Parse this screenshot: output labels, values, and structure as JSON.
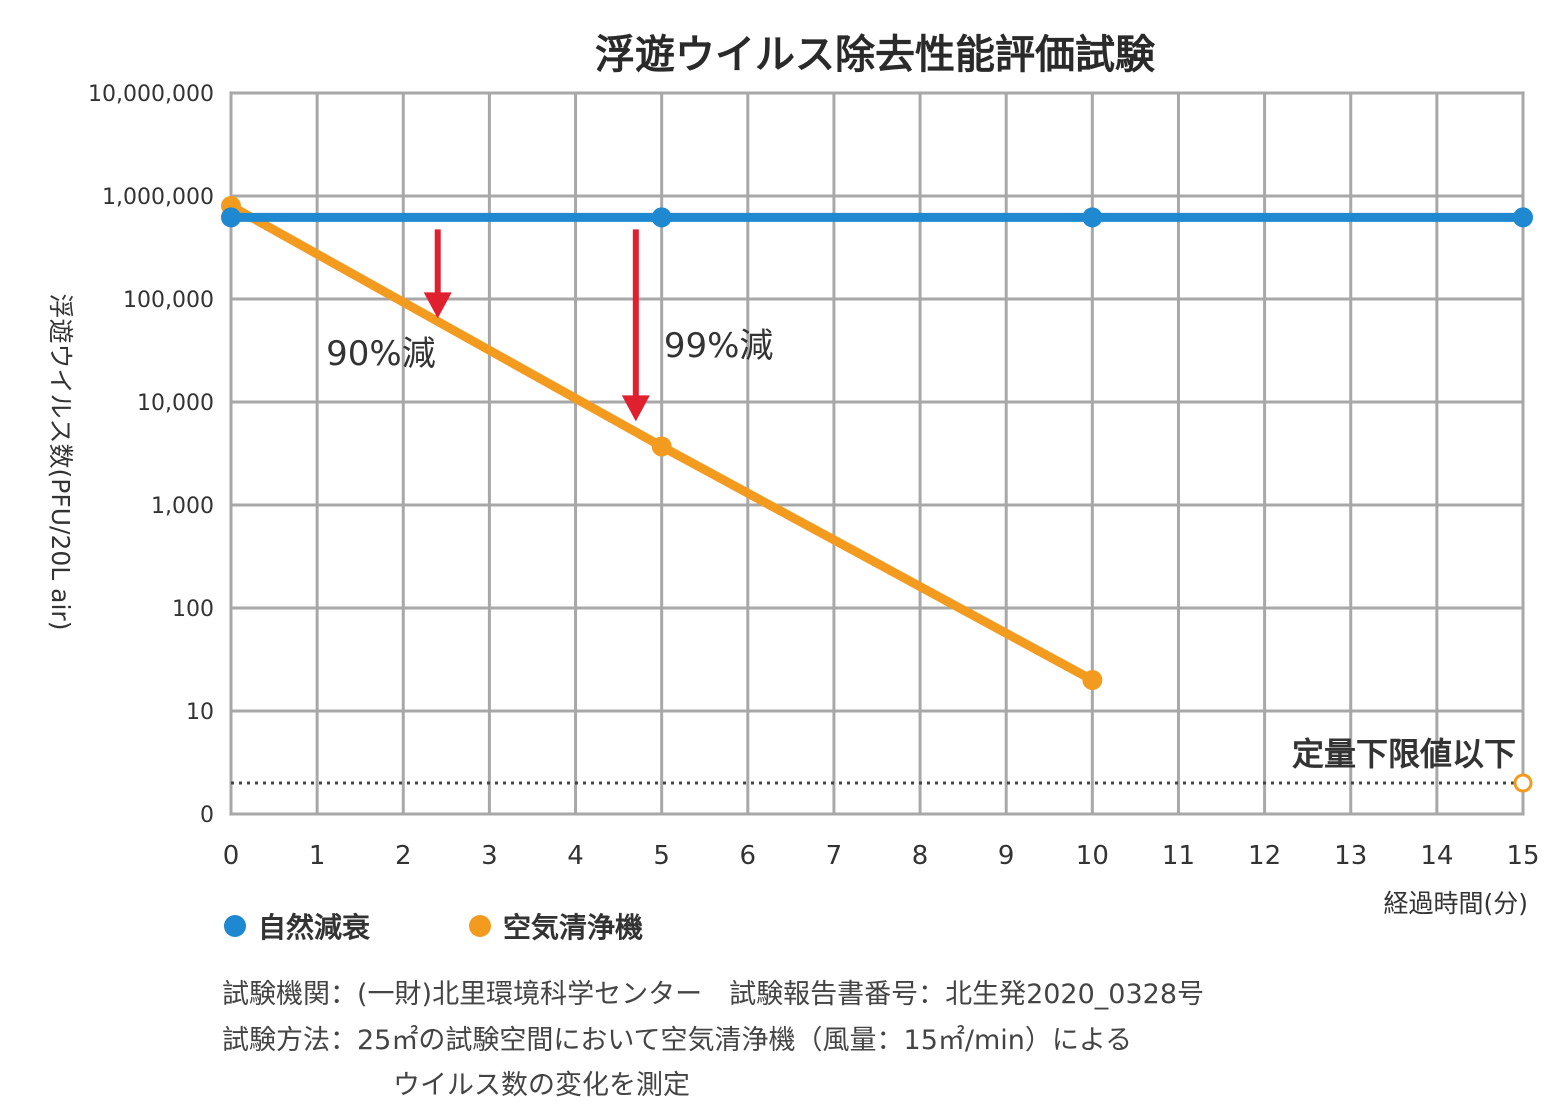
{
  "chart_data": {
    "type": "line",
    "title": "浮遊ウイルス除去性能評価試験",
    "xlabel": "経過時間(分)",
    "ylabel": "浮遊ウイルス数(PFU/20L air)",
    "yscale": "log",
    "x_ticks": [
      "0",
      "1",
      "2",
      "3",
      "4",
      "5",
      "6",
      "7",
      "8",
      "9",
      "10",
      "11",
      "12",
      "13",
      "14",
      "15"
    ],
    "y_ticks": [
      {
        "value": 1,
        "label": "0"
      },
      {
        "value": 10,
        "label": "10"
      },
      {
        "value": 100,
        "label": "100"
      },
      {
        "value": 1000,
        "label": "1,000"
      },
      {
        "value": 10000,
        "label": "10,000"
      },
      {
        "value": 100000,
        "label": "100,000"
      },
      {
        "value": 1000000,
        "label": "1,000,000"
      },
      {
        "value": 10000000,
        "label": "10,000,000"
      }
    ],
    "xlim": [
      0,
      15
    ],
    "ylim": [
      1,
      10000000
    ],
    "grid": true,
    "series": [
      {
        "name": "自然減衰",
        "color": "#1e88d0",
        "x": [
          0,
          5,
          10,
          15
        ],
        "y": [
          620000,
          620000,
          620000,
          620000
        ]
      },
      {
        "name": "空気清浄機",
        "color": "#f39b1f",
        "x": [
          0,
          5,
          10
        ],
        "y": [
          800000,
          3700,
          20
        ],
        "below_limit_x": 15
      }
    ],
    "limit": {
      "label": "定量下限値以下",
      "value": 2
    },
    "annotations": [
      {
        "text": "90%減",
        "x": 2.4,
        "from": 620000,
        "to": 62000
      },
      {
        "text": "99%減",
        "x": 4.7,
        "from": 620000,
        "to": 6200
      }
    ],
    "legend_position": "bottom-left",
    "arrow_color": "#e0202e"
  },
  "footer": {
    "line1": "試験機関：(一財)北里環境科学センター　試験報告書番号：北生発2020_0328号",
    "line2": "試験方法：25㎡の試験空間において空気清浄機（風量：15㎡/min）による",
    "line3": "ウイルス数の変化を測定"
  }
}
